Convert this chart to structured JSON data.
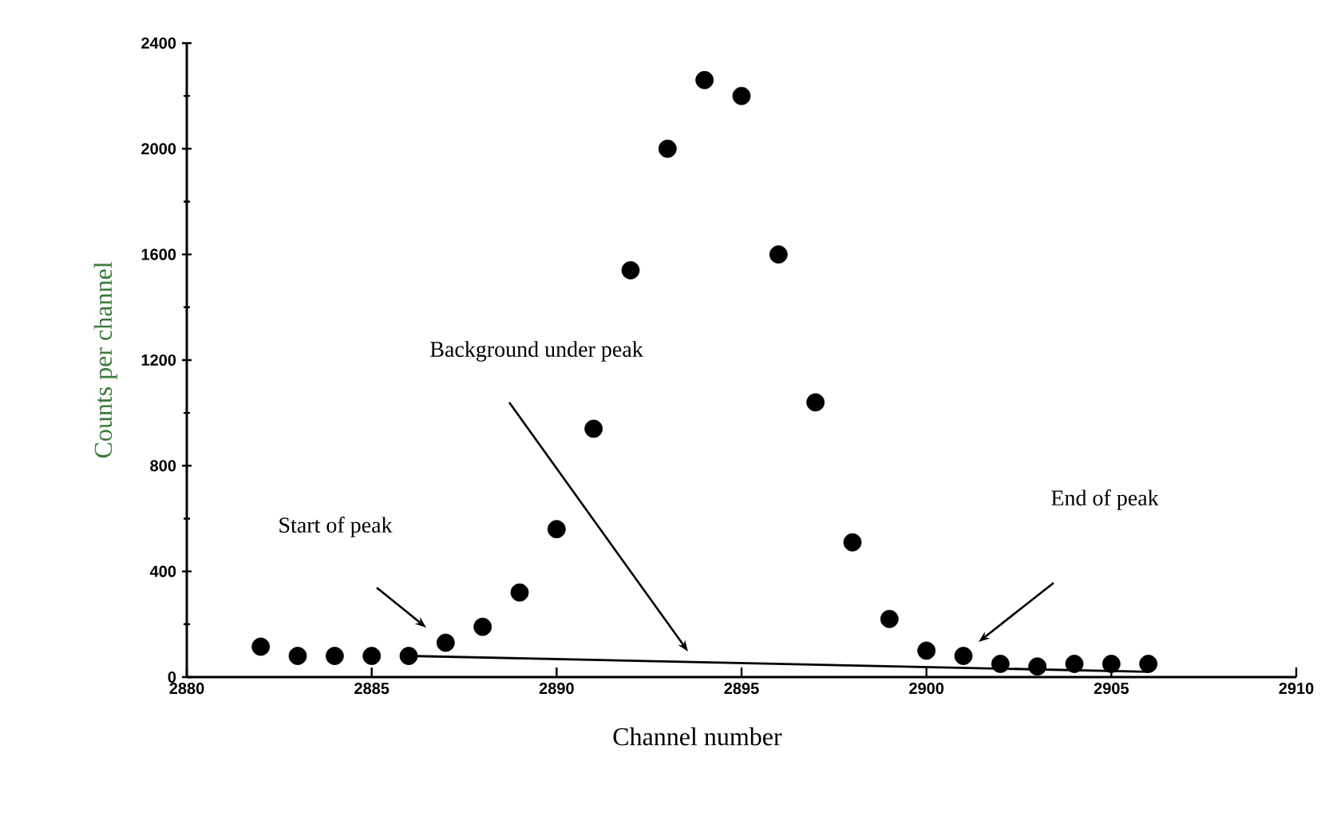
{
  "chart_data": {
    "type": "scatter",
    "xlabel": "Channel number",
    "ylabel": "Counts per channel",
    "xlim": [
      2880,
      2910
    ],
    "xticks": [
      2880,
      2885,
      2890,
      2895,
      2900,
      2905,
      2910
    ],
    "ylim": [
      0,
      2400
    ],
    "yticks": [
      0,
      400,
      800,
      1200,
      1600,
      2000,
      2400
    ],
    "series": [
      {
        "marker": "circle",
        "color": "#000000",
        "x": [
          2882,
          2883,
          2884,
          2885,
          2886,
          2887,
          2888,
          2889,
          2890,
          2891,
          2892,
          2893,
          2894,
          2895,
          2896,
          2897,
          2898,
          2899,
          2900,
          2901,
          2902,
          2903,
          2904,
          2905,
          2906
        ],
        "values": [
          115,
          80,
          80,
          80,
          80,
          130,
          190,
          320,
          560,
          940,
          1540,
          2000,
          2260,
          2200,
          1600,
          1040,
          510,
          220,
          100,
          80,
          50,
          40,
          50,
          50,
          50
        ]
      },
      {
        "type": "line",
        "marker": "none",
        "color": "#000000",
        "x": [
          2886,
          2906
        ],
        "values": [
          80,
          20
        ]
      }
    ],
    "annotations": [
      "Start of peak",
      "Background under peak",
      "End of peak"
    ],
    "grid": false
  }
}
